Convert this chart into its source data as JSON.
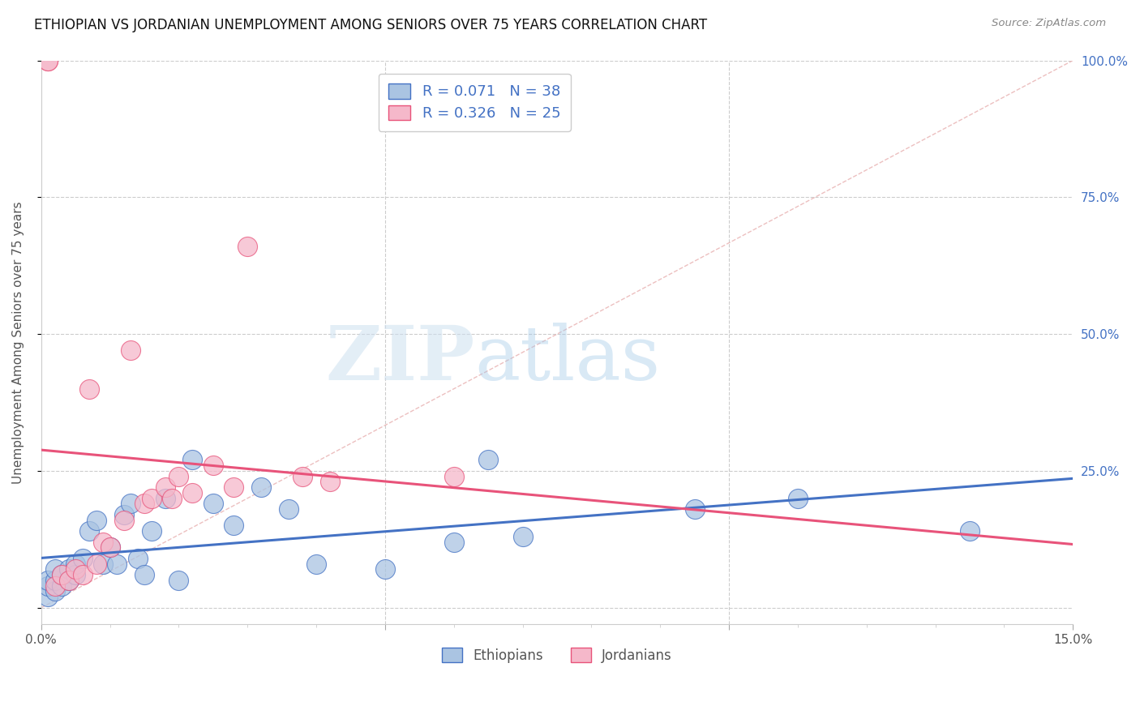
{
  "title": "ETHIOPIAN VS JORDANIAN UNEMPLOYMENT AMONG SENIORS OVER 75 YEARS CORRELATION CHART",
  "source": "Source: ZipAtlas.com",
  "ylabel": "Unemployment Among Seniors over 75 years",
  "xmin": 0.0,
  "xmax": 0.15,
  "ymin": -0.03,
  "ymax": 1.0,
  "legend_ethiopians": "Ethiopians",
  "legend_jordanians": "Jordanians",
  "R_ethiopians": "0.071",
  "N_ethiopians": "38",
  "R_jordanians": "0.326",
  "N_jordanians": "25",
  "color_ethiopians": "#aac4e2",
  "color_jordanians": "#f5b8ca",
  "color_trend_ethiopians": "#4472c4",
  "color_trend_jordanians": "#e8537a",
  "ethiopians_x": [
    0.001,
    0.001,
    0.001,
    0.002,
    0.002,
    0.002,
    0.003,
    0.003,
    0.004,
    0.004,
    0.005,
    0.005,
    0.006,
    0.007,
    0.008,
    0.009,
    0.01,
    0.011,
    0.012,
    0.013,
    0.014,
    0.015,
    0.016,
    0.018,
    0.02,
    0.022,
    0.025,
    0.028,
    0.032,
    0.036,
    0.04,
    0.05,
    0.06,
    0.065,
    0.07,
    0.095,
    0.11,
    0.135
  ],
  "ethiopians_y": [
    0.02,
    0.04,
    0.05,
    0.03,
    0.05,
    0.07,
    0.04,
    0.06,
    0.05,
    0.07,
    0.06,
    0.08,
    0.09,
    0.14,
    0.16,
    0.08,
    0.11,
    0.08,
    0.17,
    0.19,
    0.09,
    0.06,
    0.14,
    0.2,
    0.05,
    0.27,
    0.19,
    0.15,
    0.22,
    0.18,
    0.08,
    0.07,
    0.12,
    0.27,
    0.13,
    0.18,
    0.2,
    0.14
  ],
  "jordanians_x": [
    0.001,
    0.001,
    0.002,
    0.003,
    0.004,
    0.005,
    0.006,
    0.007,
    0.008,
    0.009,
    0.01,
    0.012,
    0.013,
    0.015,
    0.016,
    0.018,
    0.019,
    0.02,
    0.022,
    0.025,
    0.028,
    0.03,
    0.038,
    0.042,
    0.06
  ],
  "jordanians_y": [
    1.0,
    1.0,
    0.04,
    0.06,
    0.05,
    0.07,
    0.06,
    0.4,
    0.08,
    0.12,
    0.11,
    0.16,
    0.47,
    0.19,
    0.2,
    0.22,
    0.2,
    0.24,
    0.21,
    0.26,
    0.22,
    0.66,
    0.24,
    0.23,
    0.24
  ],
  "watermark_zip": "ZIP",
  "watermark_atlas": "atlas",
  "background_color": "#ffffff",
  "grid_color": "#cccccc",
  "diag_color": "#e8b0b0"
}
